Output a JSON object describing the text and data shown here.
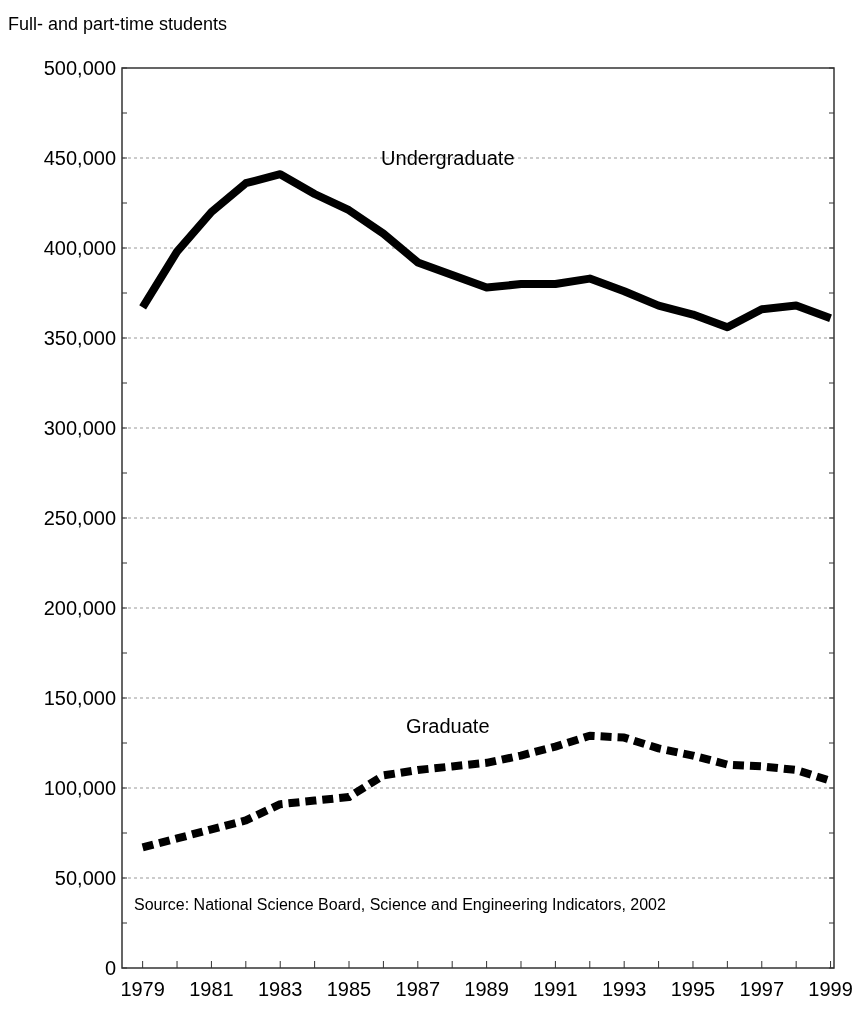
{
  "chart_data": {
    "type": "line",
    "ylabel": "Full- and part-time students",
    "x": [
      1979,
      1980,
      1981,
      1982,
      1983,
      1984,
      1985,
      1986,
      1987,
      1988,
      1989,
      1990,
      1991,
      1992,
      1993,
      1994,
      1995,
      1996,
      1997,
      1998,
      1999
    ],
    "series": [
      {
        "name": "Undergraduate",
        "color": "#000000",
        "line_style": "solid",
        "values": [
          367000,
          398000,
          420000,
          436000,
          441000,
          430000,
          421000,
          408000,
          392000,
          385000,
          378000,
          380000,
          380000,
          383000,
          376000,
          368000,
          363000,
          356000,
          366000,
          368000,
          361000
        ]
      },
      {
        "name": "Graduate",
        "color": "#000000",
        "line_style": "dashed",
        "values": [
          67000,
          72000,
          77000,
          82000,
          91000,
          93000,
          95000,
          107000,
          110000,
          112000,
          114000,
          118000,
          123000,
          129000,
          128000,
          122000,
          118000,
          113000,
          112000,
          110000,
          104000
        ]
      }
    ],
    "xlim": [
      1978.4,
      1999.1
    ],
    "xticks": [
      1979,
      {
        "value": 1980,
        "label": null
      },
      1981,
      {
        "value": 1982,
        "label": null
      },
      1983,
      {
        "value": 1984,
        "label": null
      },
      1985,
      {
        "value": 1986,
        "label": null
      },
      1987,
      {
        "value": 1988,
        "label": null
      },
      1989,
      {
        "value": 1990,
        "label": null
      },
      1991,
      {
        "value": 1992,
        "label": null
      },
      1993,
      {
        "value": 1994,
        "label": null
      },
      1995,
      {
        "value": 1996,
        "label": null
      },
      1997,
      {
        "value": 1998,
        "label": null
      },
      1999
    ],
    "ylim": [
      0,
      500000
    ],
    "yticks": [
      {
        "value": 0,
        "label": "0"
      },
      {
        "value": 25000,
        "label": null
      },
      {
        "value": 50000,
        "label": "50,000"
      },
      {
        "value": 75000,
        "label": null
      },
      {
        "value": 100000,
        "label": "100,000"
      },
      {
        "value": 125000,
        "label": null
      },
      {
        "value": 150000,
        "label": "150,000"
      },
      {
        "value": 175000,
        "label": null
      },
      {
        "value": 200000,
        "label": "200,000"
      },
      {
        "value": 225000,
        "label": null
      },
      {
        "value": 250000,
        "label": "250,000"
      },
      {
        "value": 275000,
        "label": null
      },
      {
        "value": 300000,
        "label": "300,000"
      },
      {
        "value": 325000,
        "label": null
      },
      {
        "value": 350000,
        "label": "350,000"
      },
      {
        "value": 375000,
        "label": null
      },
      {
        "value": 400000,
        "label": "400,000"
      },
      {
        "value": 425000,
        "label": null
      },
      {
        "value": 450000,
        "label": "450,000"
      },
      {
        "value": 475000,
        "label": null
      },
      {
        "value": 500000,
        "label": "500,000"
      }
    ],
    "grid": "y",
    "legend": false,
    "marker": "none",
    "annotations": [
      "Source:  National Science Board, Science and Engineering Indicators, 2002"
    ]
  }
}
